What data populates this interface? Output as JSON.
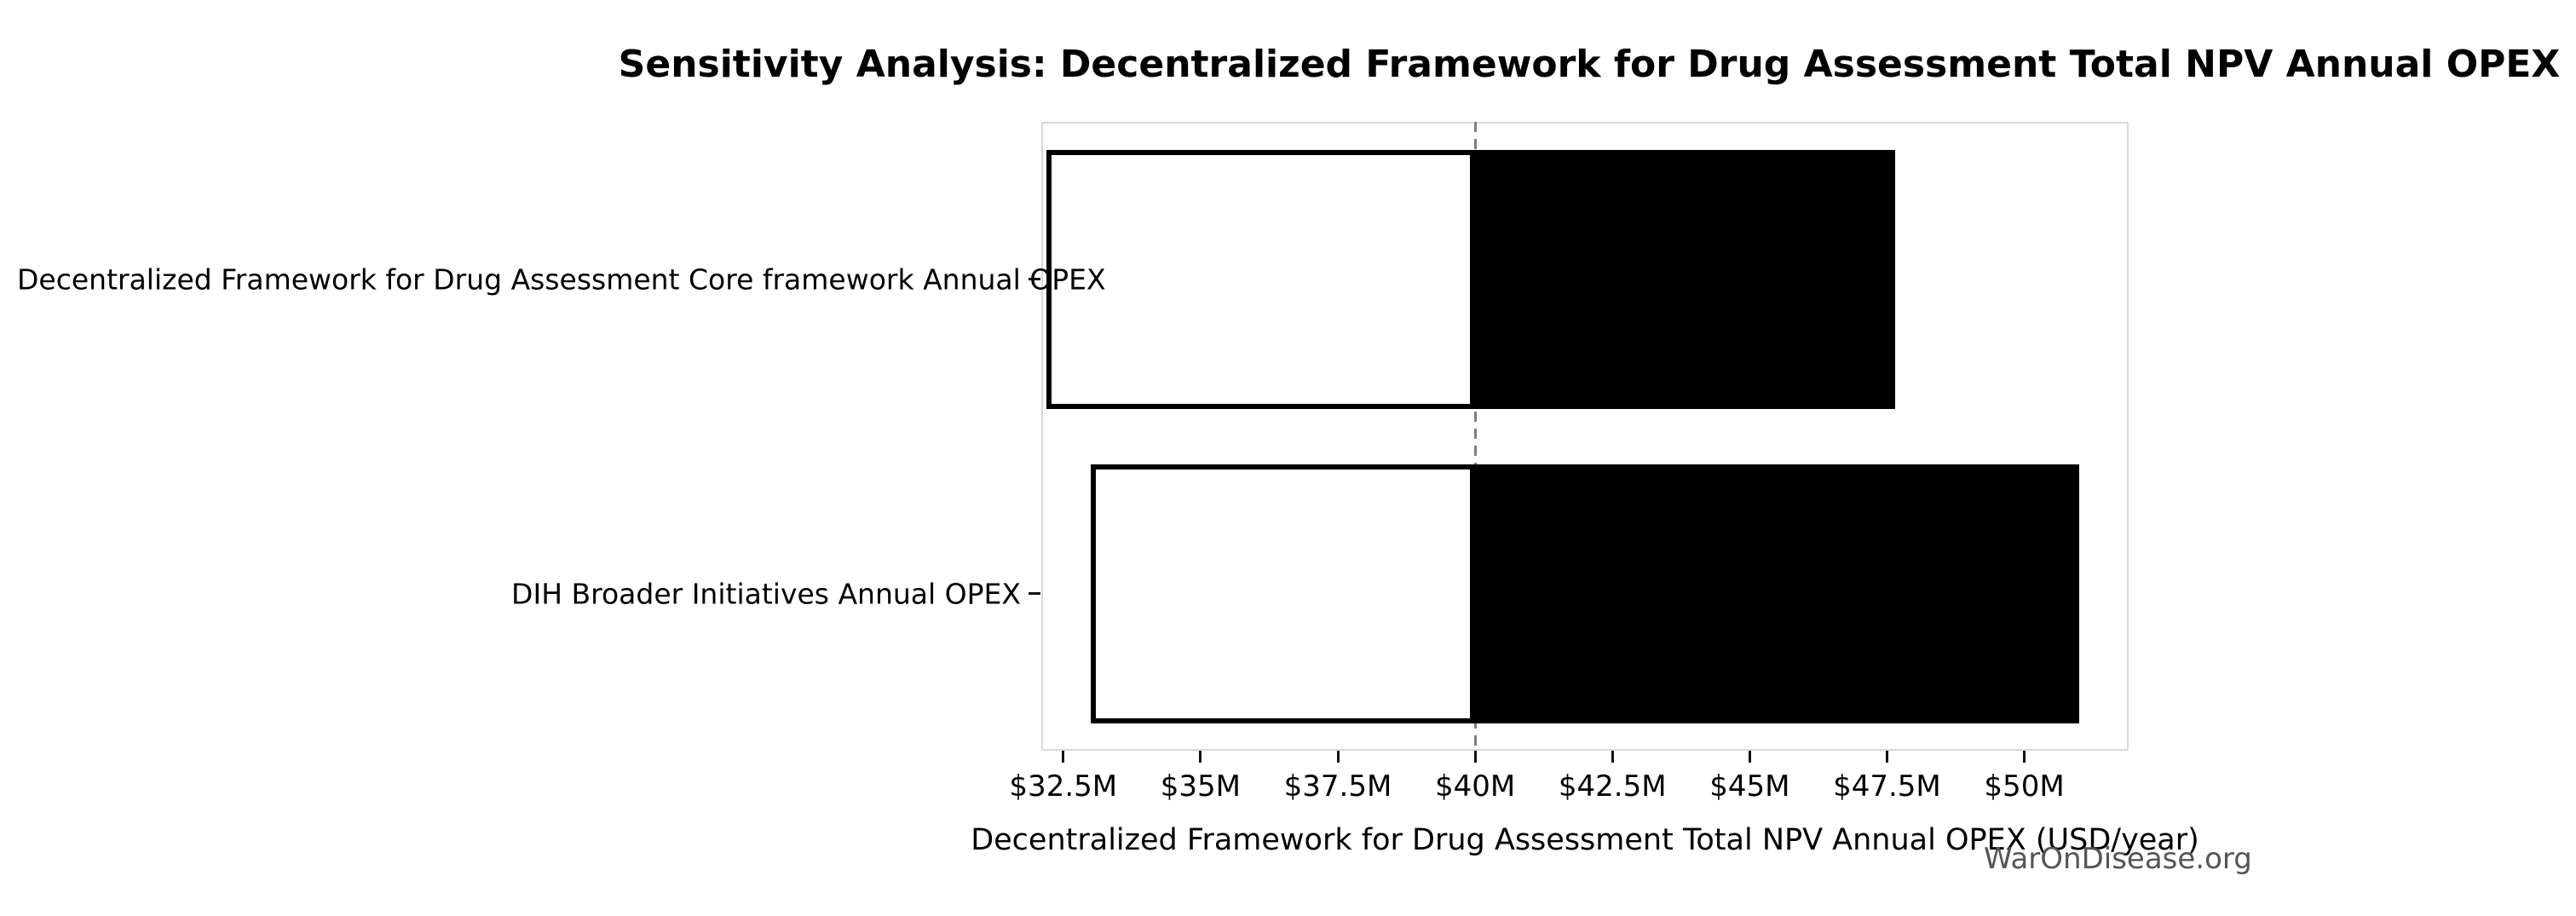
{
  "title": "Sensitivity Analysis: Decentralized Framework for Drug Assessment Total NPV Annual OPEX",
  "watermark": "WarOnDisease.org",
  "chart_data": {
    "type": "bar",
    "orientation": "horizontal",
    "title": "Sensitivity Analysis: Decentralized Framework for Drug Assessment Total NPV Annual OPEX",
    "xlabel": "Decentralized Framework for Drug Assessment Total NPV Annual OPEX (USD/year)",
    "ylabel": "",
    "categories": [
      "Decentralized Framework for Drug Assessment Core framework Annual OPEX",
      "DIH Broader Initiatives Annual OPEX"
    ],
    "bars": [
      {
        "label": "Decentralized Framework for Drug Assessment Core framework Annual OPEX",
        "low": 32.2,
        "high": 47.65
      },
      {
        "label": "DIH Broader Initiatives Annual OPEX",
        "low": 33.0,
        "high": 51.0
      }
    ],
    "values_unit": "USD millions per year",
    "baseline": 40.0,
    "xlim": [
      32.1,
      51.9
    ],
    "xticks": [
      32.5,
      35,
      37.5,
      40,
      42.5,
      45,
      47.5,
      50
    ],
    "xtick_labels": [
      "$32.5M",
      "$35M",
      "$37.5M",
      "$40M",
      "$42.5M",
      "$45M",
      "$47.5M",
      "$50M"
    ],
    "grid": false,
    "legend": "none",
    "colors": {
      "bar_fill_below_baseline": "#ffffff",
      "bar_fill_above_baseline": "#000000",
      "bar_edge": "#000000",
      "baseline_line": "#7f7f7f",
      "spine": "#d9d9d9",
      "tick": "#111111",
      "text": "#000000",
      "watermark_text": "#555555"
    }
  }
}
